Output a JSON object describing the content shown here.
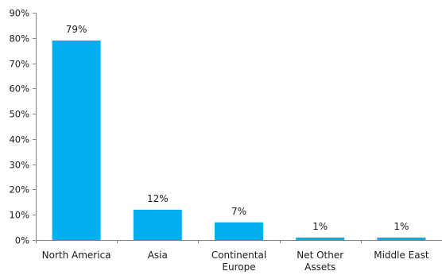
{
  "chart_data": {
    "type": "bar",
    "categories": [
      "North America",
      "Asia",
      "Continental Europe",
      "Net Other Assets",
      "Middle East"
    ],
    "category_lines": [
      [
        "North America"
      ],
      [
        "Asia"
      ],
      [
        "Continental",
        "Europe"
      ],
      [
        "Net Other",
        "Assets"
      ],
      [
        "Middle East"
      ]
    ],
    "values": [
      79,
      12,
      7,
      1,
      1
    ],
    "data_labels": [
      "79%",
      "12%",
      "7%",
      "1%",
      "1%"
    ],
    "y_ticks": [
      0,
      10,
      20,
      30,
      40,
      50,
      60,
      70,
      80,
      90
    ],
    "y_tick_labels": [
      "0%",
      "10%",
      "20%",
      "30%",
      "40%",
      "50%",
      "60%",
      "70%",
      "80%",
      "90%"
    ],
    "ylim": [
      0,
      90
    ],
    "title": "",
    "xlabel": "",
    "ylabel": "",
    "grid": false,
    "legend": "none",
    "colors": {
      "bar": "#00AEEF",
      "axis": "#808080",
      "text": "#1a1a1a"
    }
  }
}
